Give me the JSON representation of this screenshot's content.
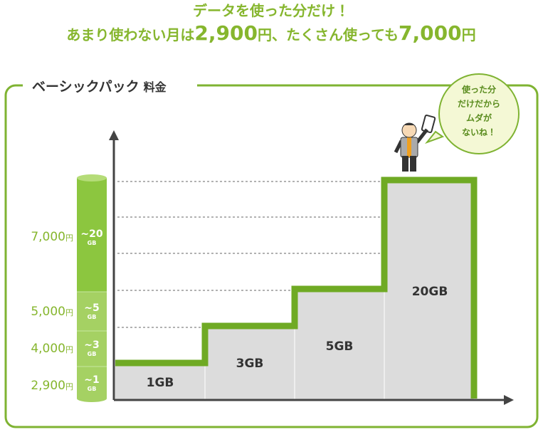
{
  "header": {
    "line1": "データを使った分だけ！",
    "line2": [
      "あまり使わない月は",
      "2,900",
      "円、たくさん使っても",
      "7,000",
      "円"
    ]
  },
  "section": {
    "title": "ベーシックパック",
    "suffix": "料金"
  },
  "bubble": [
    "使った分",
    "だけだから",
    "ムダが",
    "ないね！"
  ],
  "prices": [
    {
      "amount": "7,000",
      "unit": "円"
    },
    {
      "amount": "5,000",
      "unit": "円"
    },
    {
      "amount": "4,000",
      "unit": "円"
    },
    {
      "amount": "2,900",
      "unit": "円"
    }
  ],
  "tiers": [
    {
      "limit": "~20",
      "unit": "GB"
    },
    {
      "limit": "~5",
      "unit": "GB"
    },
    {
      "limit": "~3",
      "unit": "GB"
    },
    {
      "limit": "~1",
      "unit": "GB"
    }
  ],
  "steps": [
    "1GB",
    "3GB",
    "5GB",
    "20GB"
  ]
}
